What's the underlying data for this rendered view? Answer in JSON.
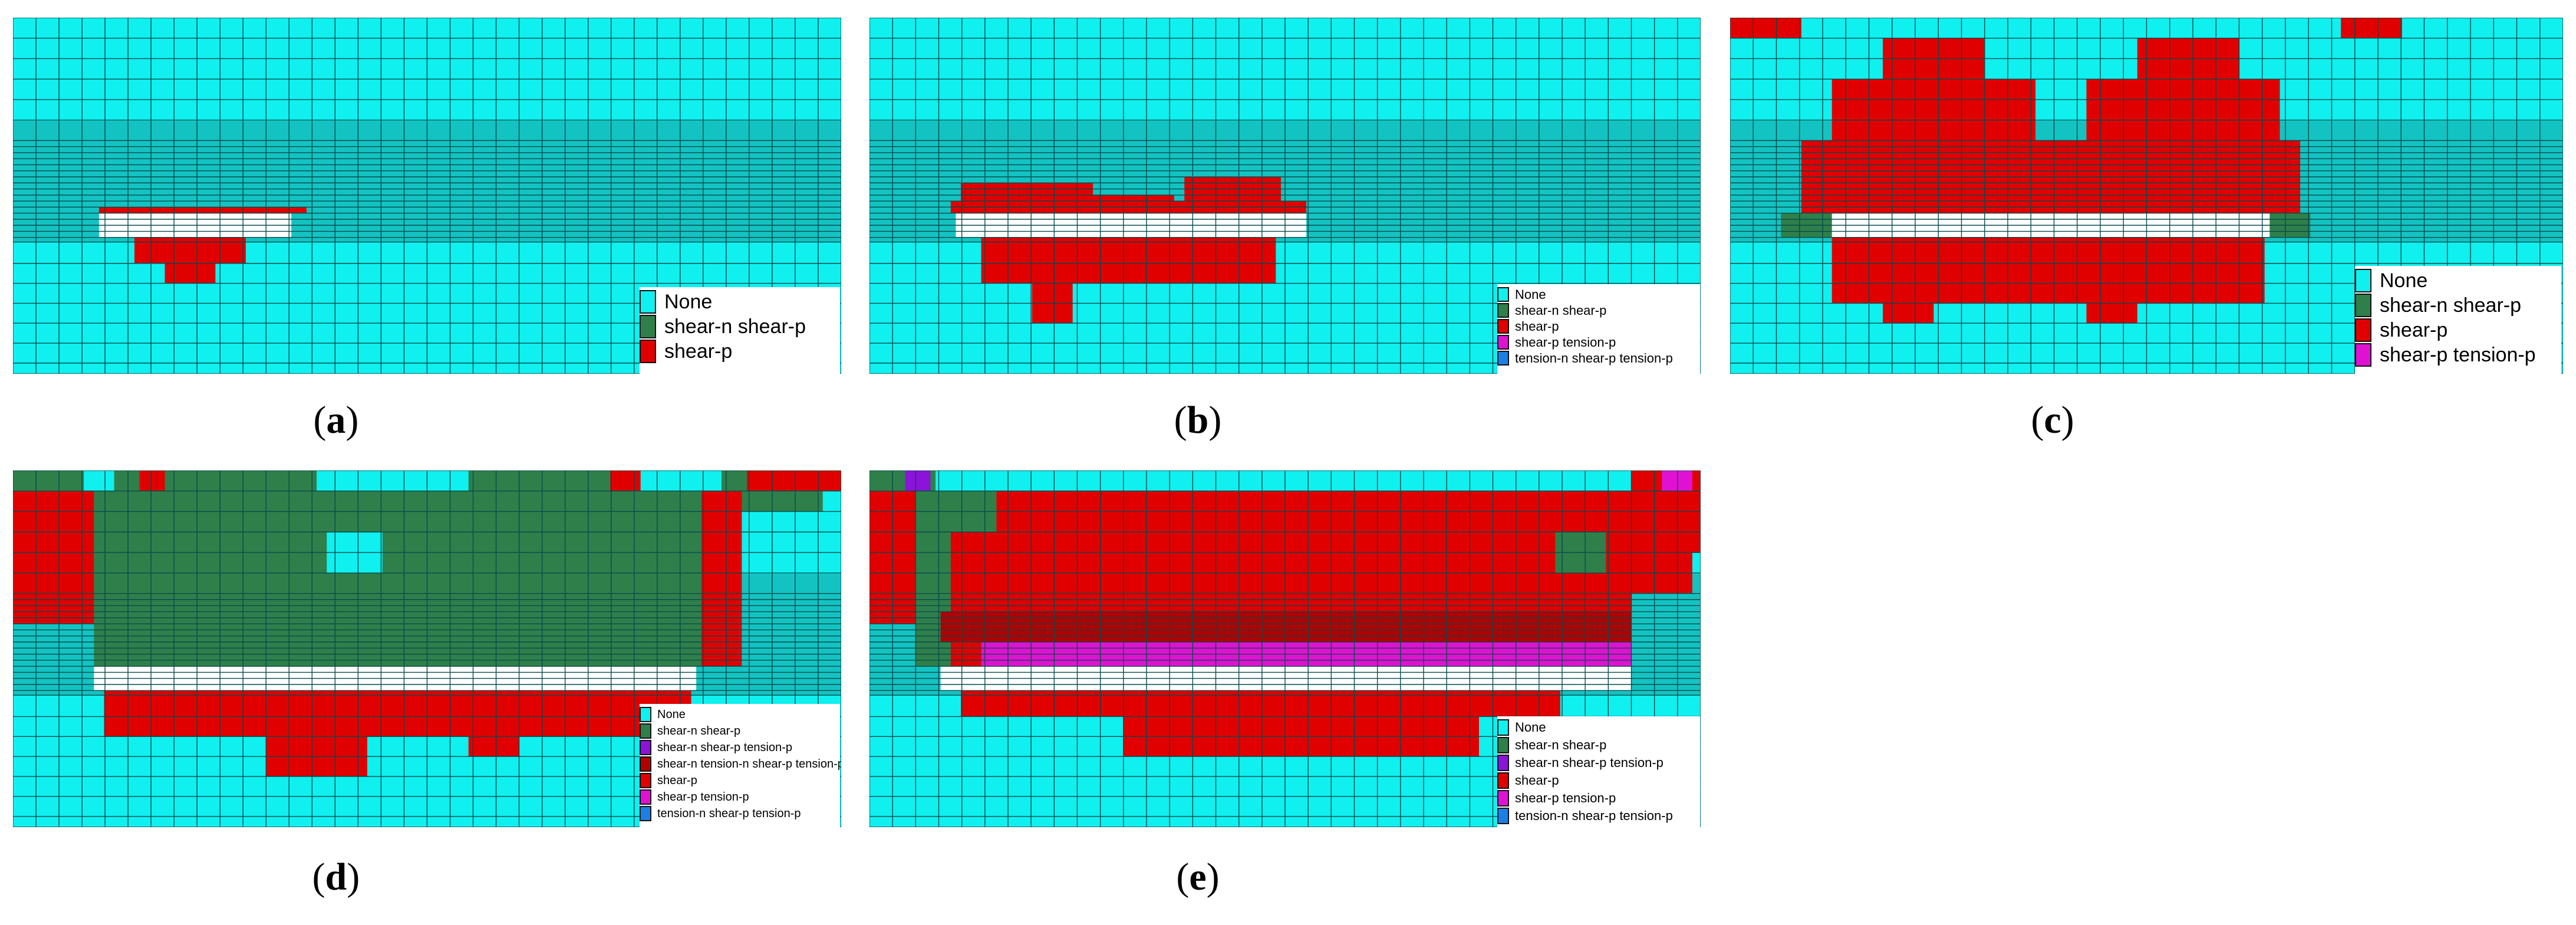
{
  "colors": {
    "none": "#0ff0ef",
    "upper_band": "#13c3c2",
    "grid_line": "#074b4c",
    "shear_n_shear_p": "#2f7f4a",
    "shear_p": "#e00000",
    "dark_red": "#b00000",
    "shear_p_tension_p": "#e012d2",
    "purple": "#8a14d8",
    "blue": "#1c7fe6",
    "void": "#ffffff"
  },
  "panels": [
    {
      "id": "a",
      "caption_label": "a",
      "legend": [
        {
          "label": "None",
          "color": "none"
        },
        {
          "label": "shear-n shear-p",
          "color": "shear_n_shear_p"
        },
        {
          "label": "shear-p",
          "color": "shear_p"
        }
      ]
    },
    {
      "id": "b",
      "caption_label": "b",
      "legend": [
        {
          "label": "None",
          "color": "none"
        },
        {
          "label": "shear-n shear-p",
          "color": "shear_n_shear_p"
        },
        {
          "label": "shear-p",
          "color": "shear_p"
        },
        {
          "label": "shear-p tension-p",
          "color": "shear_p_tension_p"
        },
        {
          "label": "tension-n shear-p tension-p",
          "color": "blue"
        }
      ]
    },
    {
      "id": "c",
      "caption_label": "c",
      "legend": [
        {
          "label": "None",
          "color": "none"
        },
        {
          "label": "shear-n shear-p",
          "color": "shear_n_shear_p"
        },
        {
          "label": "shear-p",
          "color": "shear_p"
        },
        {
          "label": "shear-p tension-p",
          "color": "shear_p_tension_p"
        }
      ]
    },
    {
      "id": "d",
      "caption_label": "d",
      "legend": [
        {
          "label": "None",
          "color": "none"
        },
        {
          "label": "shear-n shear-p",
          "color": "shear_n_shear_p"
        },
        {
          "label": "shear-n shear-p tension-p",
          "color": "purple"
        },
        {
          "label": "shear-n tension-n shear-p tension-p",
          "color": "dark_red"
        },
        {
          "label": "shear-p",
          "color": "shear_p"
        },
        {
          "label": "shear-p tension-p",
          "color": "shear_p_tension_p"
        },
        {
          "label": "tension-n shear-p tension-p",
          "color": "blue"
        }
      ]
    },
    {
      "id": "e",
      "caption_label": "e",
      "legend": [
        {
          "label": "None",
          "color": "none"
        },
        {
          "label": "shear-n shear-p",
          "color": "shear_n_shear_p"
        },
        {
          "label": "shear-n shear-p tension-p",
          "color": "purple"
        },
        {
          "label": "shear-p",
          "color": "shear_p"
        },
        {
          "label": "shear-p tension-p",
          "color": "shear_p_tension_p"
        },
        {
          "label": "tension-n shear-p tension-p",
          "color": "blue"
        }
      ]
    }
  ]
}
